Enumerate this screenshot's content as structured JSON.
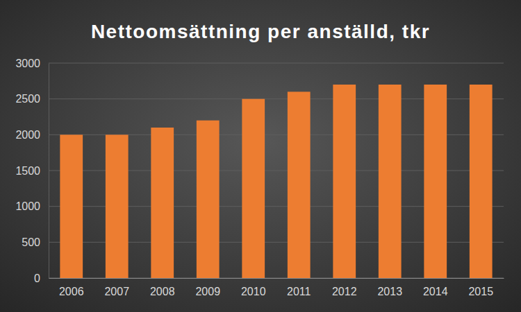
{
  "chart_data": {
    "type": "bar",
    "title": "Nettoomsättning per anställd, tkr",
    "categories": [
      "2006",
      "2007",
      "2008",
      "2009",
      "2010",
      "2011",
      "2012",
      "2013",
      "2014",
      "2015"
    ],
    "values": [
      2000,
      2000,
      2100,
      2200,
      2500,
      2600,
      2700,
      2700,
      2700,
      2700
    ],
    "color": "#ed7d31",
    "ylim": [
      0,
      3000
    ],
    "yticks": [
      0,
      500,
      1000,
      1500,
      2000,
      2500,
      3000
    ],
    "grid": true
  }
}
